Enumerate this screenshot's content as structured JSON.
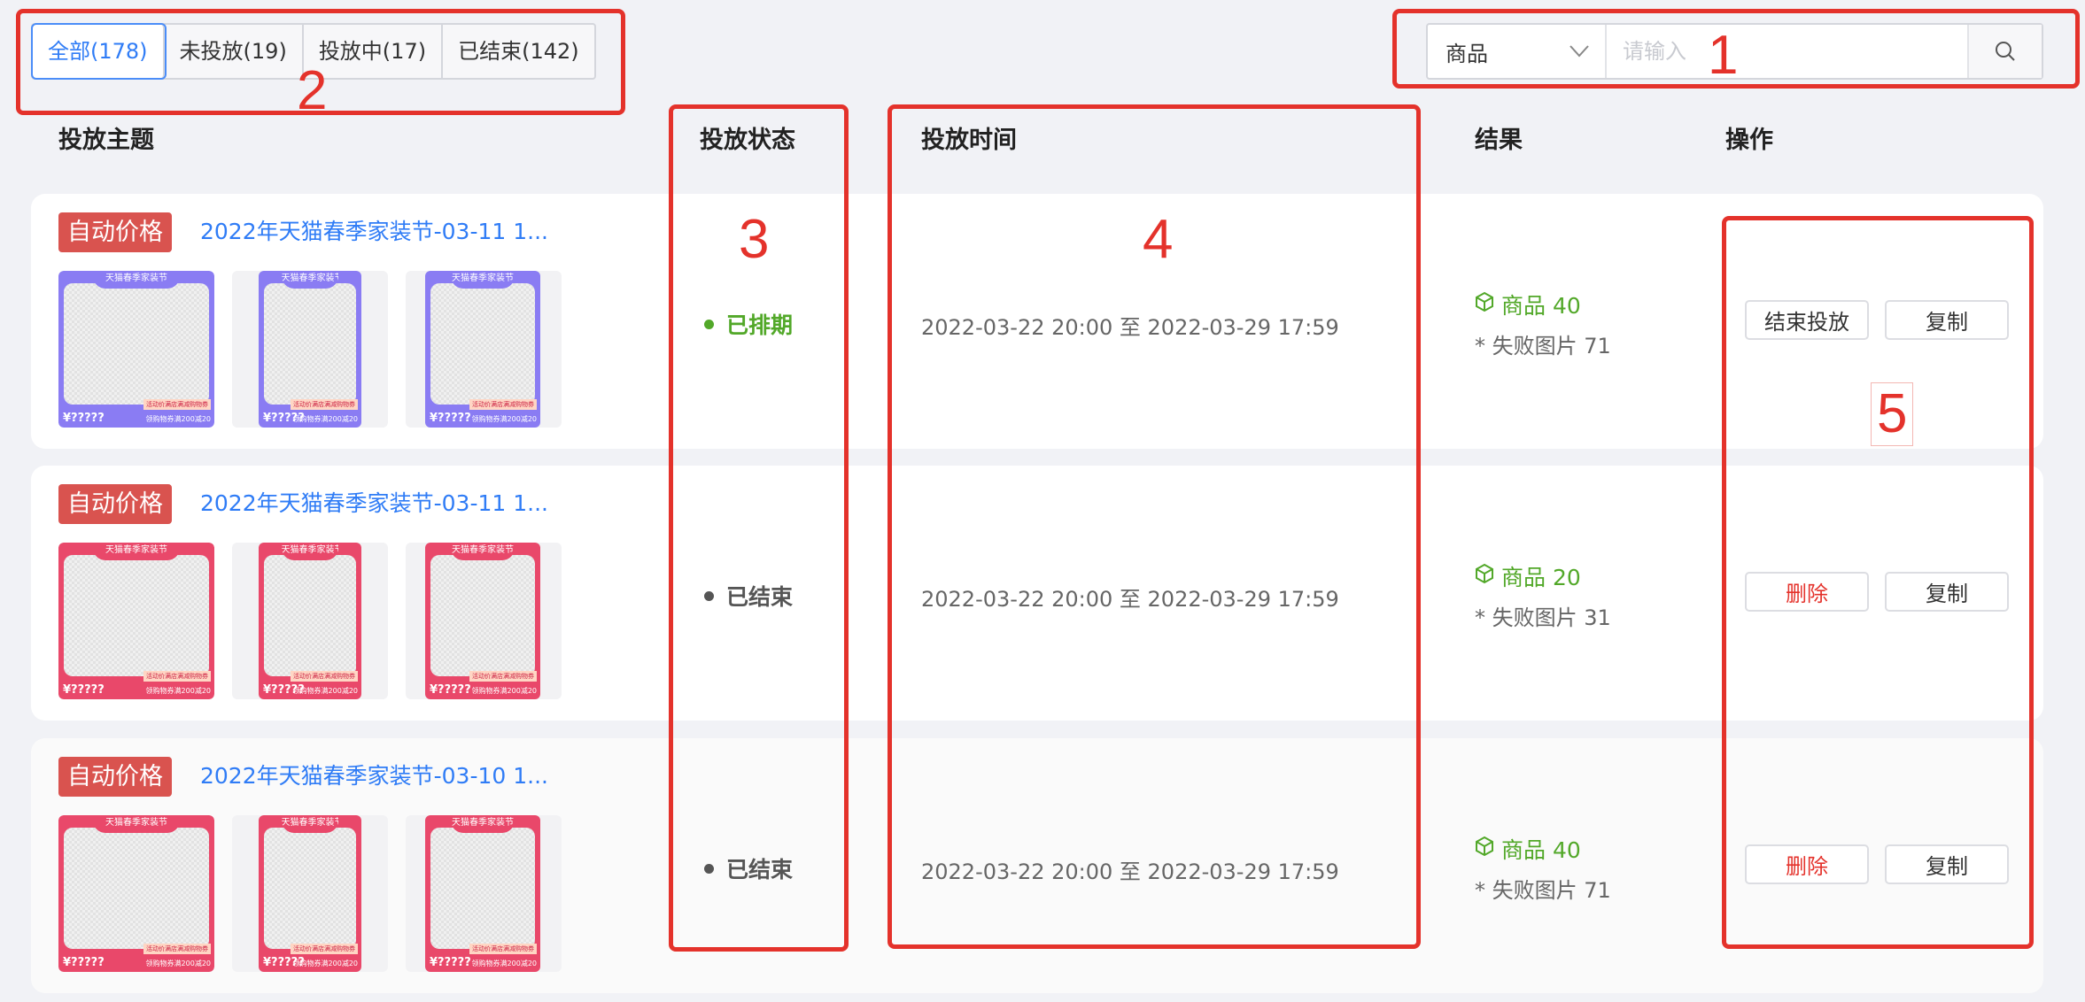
{
  "filter_tabs": [
    {
      "label": "全部(178)",
      "active": true
    },
    {
      "label": "未投放(19)",
      "active": false
    },
    {
      "label": "投放中(17)",
      "active": false
    },
    {
      "label": "已结束(142)",
      "active": false
    }
  ],
  "search": {
    "select_value": "商品",
    "placeholder": "请输入",
    "icon": "search-icon"
  },
  "columns": [
    "投放主题",
    "投放状态",
    "投放时间",
    "结果",
    "操作"
  ],
  "rows": [
    {
      "tag": "自动价格",
      "title": "2022年天猫春季家装节-03-11 1...",
      "theme": "#8a7cf3",
      "status": "已排期",
      "status_color": "#52a829",
      "time": "2022-03-22 20:00 至 2022-03-29 17:59",
      "result_goods": "商品 40",
      "result_fail": "* 失败图片 71",
      "actions": [
        "结束投放",
        "复制"
      ]
    },
    {
      "tag": "自动价格",
      "title": "2022年天猫春季家装节-03-11 1...",
      "theme": "#e9486a",
      "status": "已结束",
      "status_color": "#555555",
      "time": "2022-03-22 20:00 至 2022-03-29 17:59",
      "result_goods": "商品 20",
      "result_fail": "* 失败图片 31",
      "actions": [
        "删除",
        "复制"
      ]
    },
    {
      "tag": "自动价格",
      "title": "2022年天猫春季家装节-03-10 1...",
      "theme": "#e9486a",
      "status": "已结束",
      "status_color": "#555555",
      "time": "2022-03-22 20:00 至 2022-03-29 17:59",
      "result_goods": "商品 40",
      "result_fail": "* 失败图片 71",
      "actions": [
        "删除",
        "复制"
      ]
    }
  ],
  "thumbnail": {
    "banner": "天猫春季家装节",
    "activity": "活动价满店满减购物券",
    "price": "¥?????",
    "coupon": "领购物券满200减20"
  },
  "annotations": [
    "1",
    "2",
    "3",
    "4",
    "5"
  ],
  "colors": {
    "accent": "#2f7cf6",
    "annotation": "#e4322b",
    "danger": "#e4322b",
    "success": "#52a829"
  }
}
